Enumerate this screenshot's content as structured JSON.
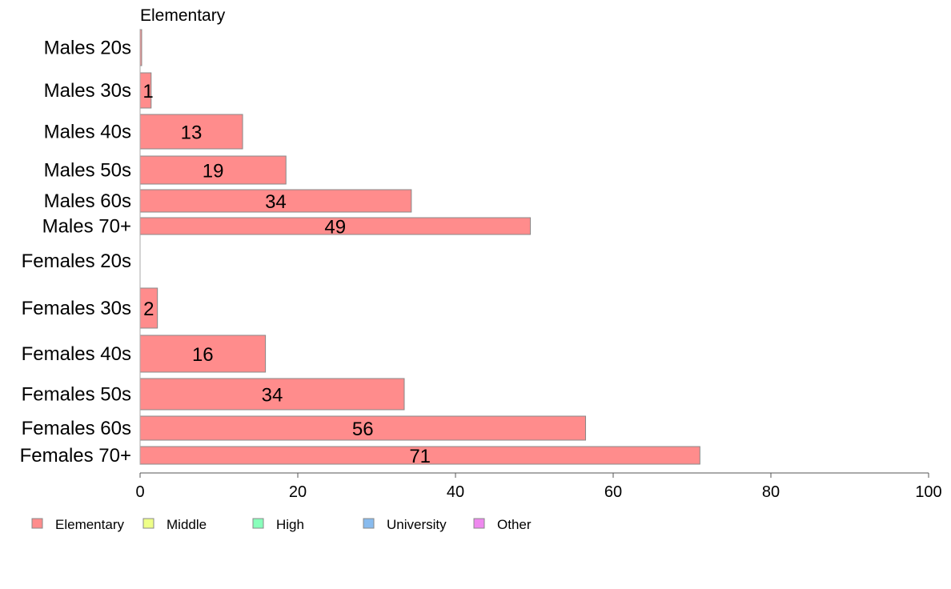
{
  "chart_data": {
    "type": "bar",
    "orientation": "horizontal",
    "title": "Elementary",
    "categories": [
      "Males 20s",
      "Males 30s",
      "Males 40s",
      "Males 50s",
      "Males 60s",
      "Males 70+",
      "Females 20s",
      "Females 30s",
      "Females 40s",
      "Females 50s",
      "Females 60s",
      "Females 70+"
    ],
    "series": [
      {
        "name": "Elementary",
        "color": "#ff8c8c",
        "values": [
          0.2,
          1.4,
          13,
          18.5,
          34.4,
          49.5,
          0,
          2.2,
          15.9,
          33.5,
          56.5,
          71
        ],
        "labels": [
          "",
          "1",
          "13",
          "19",
          "34",
          "49",
          "",
          "2",
          "16",
          "34",
          "56",
          "71"
        ]
      }
    ],
    "xlim": [
      0,
      100
    ],
    "xticks": [
      0,
      20,
      40,
      60,
      80,
      100
    ],
    "grid": false,
    "legend_position": "bottom-left",
    "legend": [
      {
        "label": "Elementary",
        "color": "#ff8c8c"
      },
      {
        "label": "Middle",
        "color": "#eeff88"
      },
      {
        "label": "High",
        "color": "#88ffbb"
      },
      {
        "label": "University",
        "color": "#88bbee"
      },
      {
        "label": "Other",
        "color": "#ee88ee"
      }
    ]
  }
}
